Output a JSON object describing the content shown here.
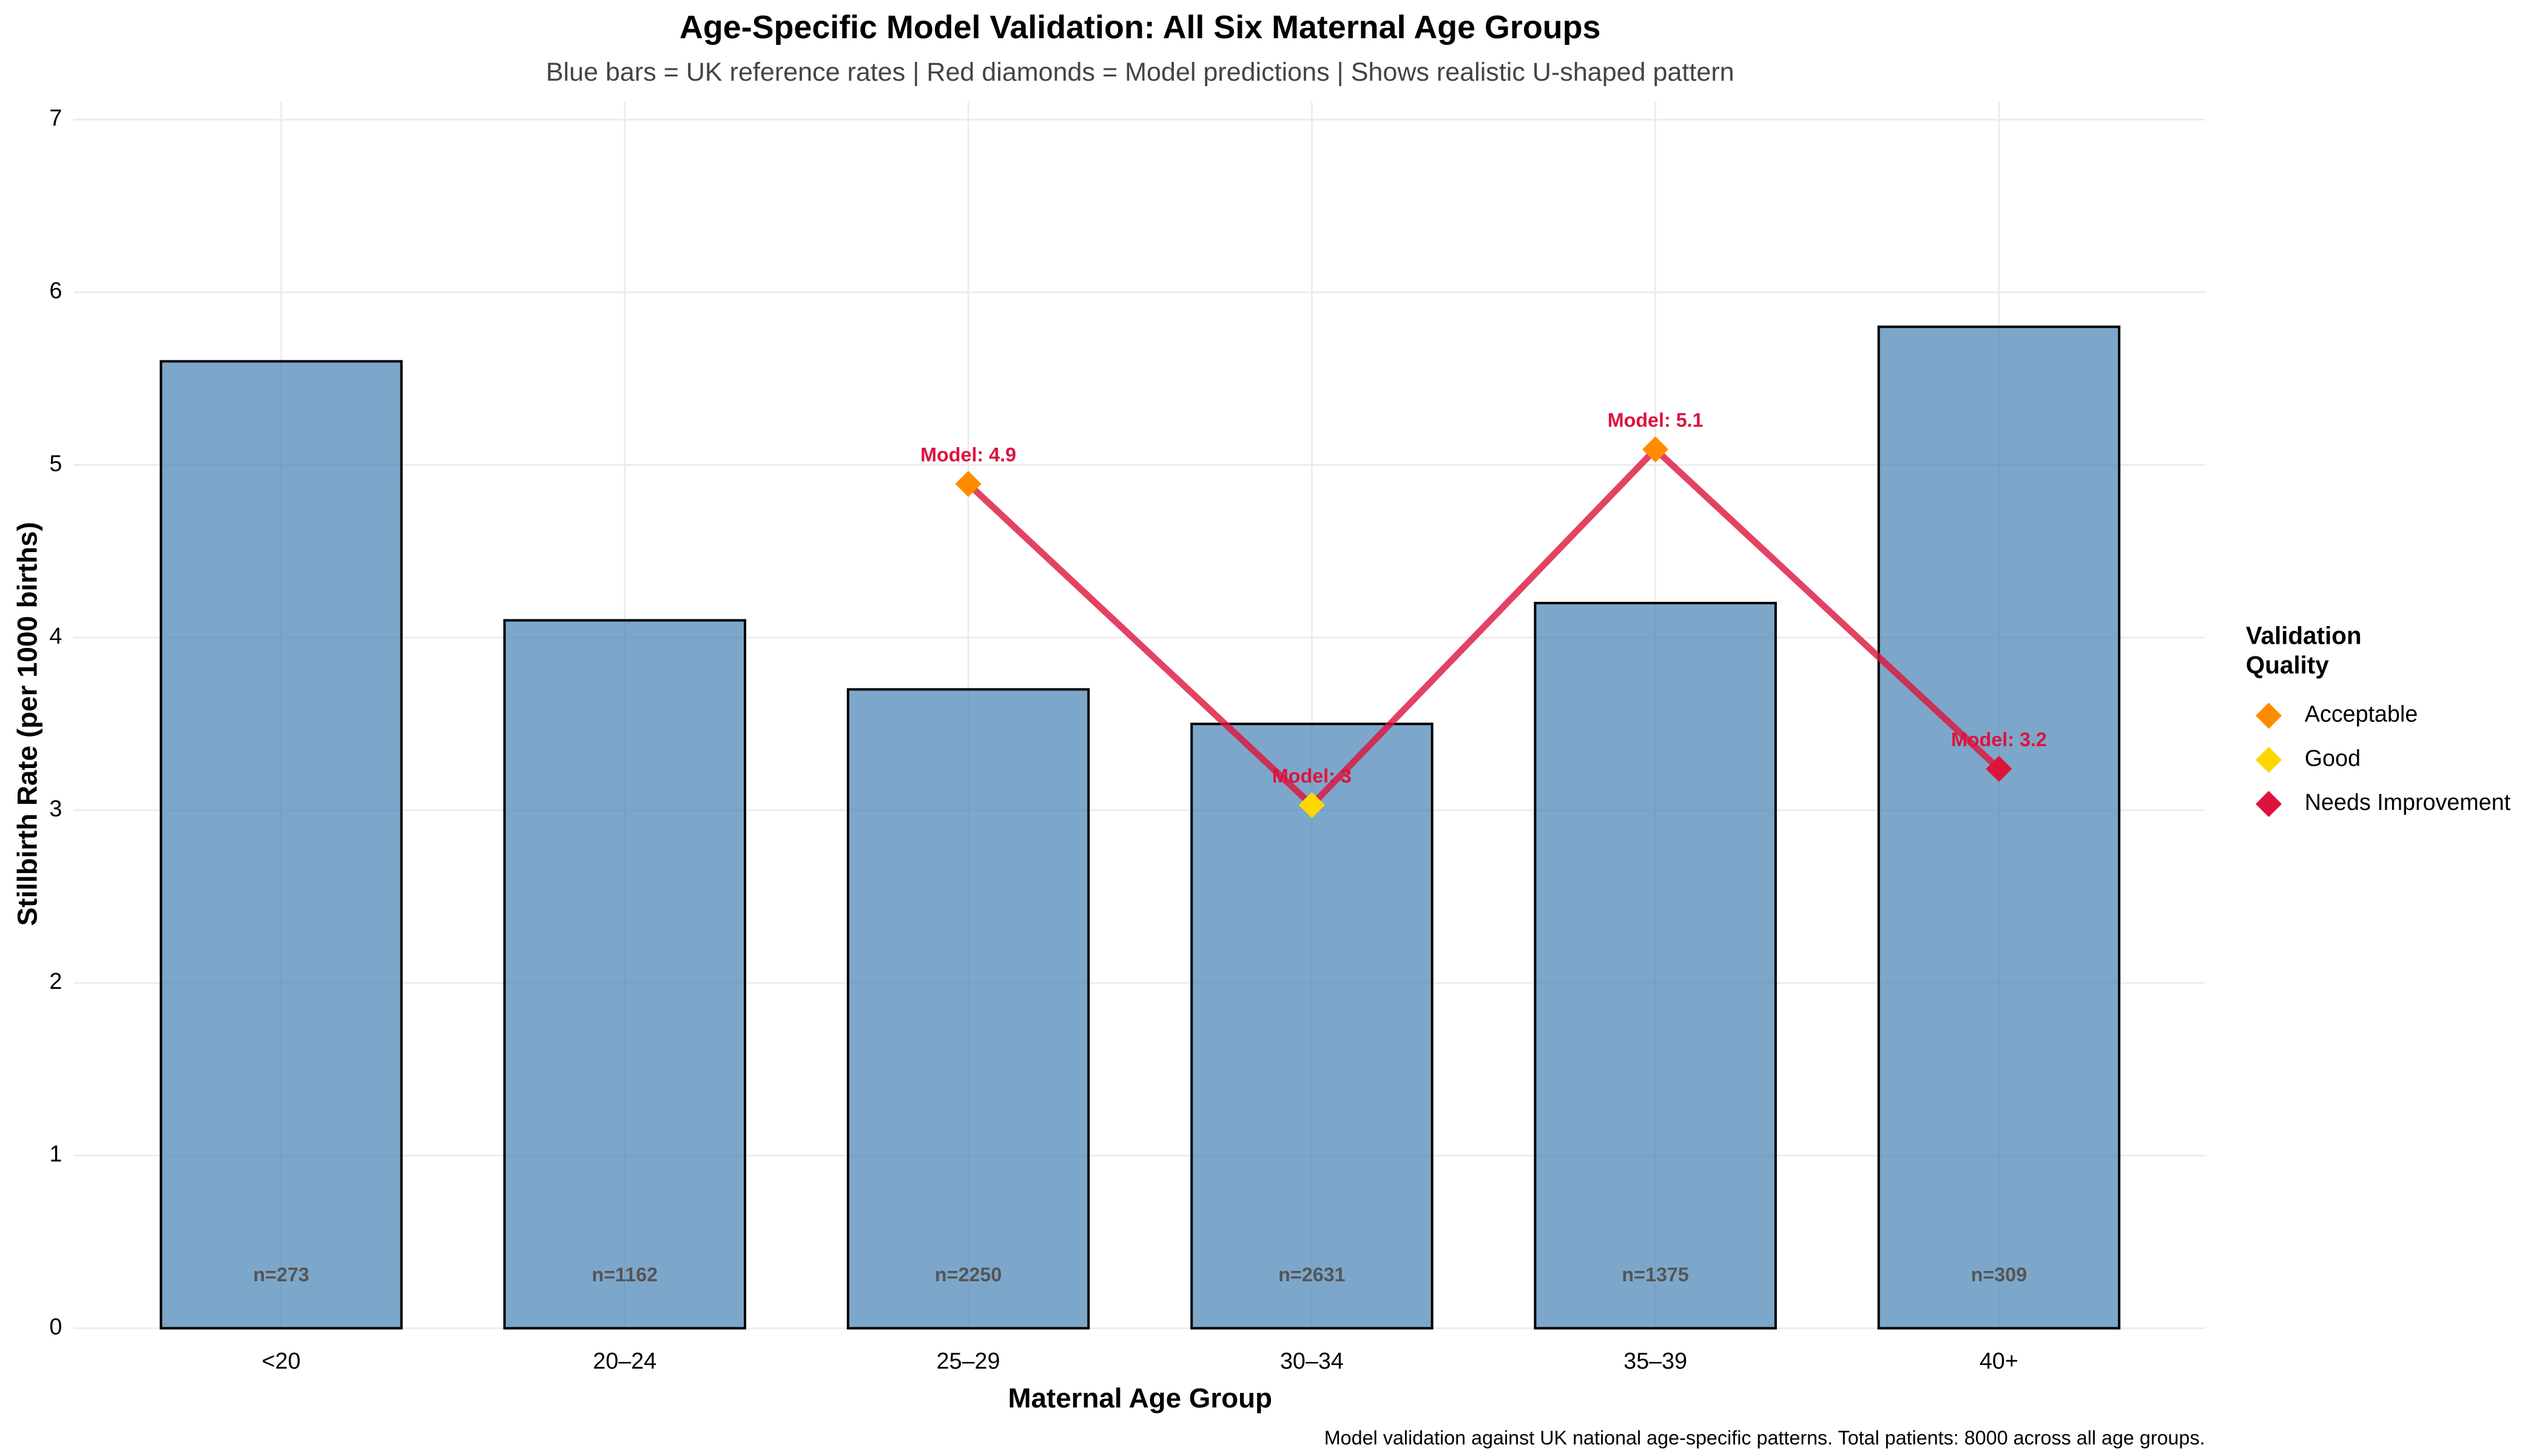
{
  "chart_data": {
    "type": "bar",
    "title": "Age-Specific Model Validation: All Six Maternal Age Groups",
    "subtitle": "Blue bars = UK reference rates | Red diamonds = Model predictions | Shows realistic U-shaped pattern",
    "x_label": "Maternal Age Group",
    "y_label": "Stillbirth Rate (per 1000 births)",
    "caption": "Model validation against UK national age-specific patterns. Total patients: 8000 across all age groups.",
    "categories": [
      "<20",
      "20–24",
      "25–29",
      "30–34",
      "35–39",
      "40+"
    ],
    "series": [
      {
        "name": "UK reference rates",
        "color": "#4682b4",
        "values": [
          5.6,
          4.1,
          3.7,
          3.5,
          4.2,
          5.8
        ],
        "bar_labels": [
          "n=273",
          "n=1162",
          "n=2250",
          "n=2631",
          "n=1375",
          "n=309"
        ]
      },
      {
        "name": "Model predictions",
        "color": "#dc143c",
        "values": [
          null,
          null,
          4.89,
          3.03,
          5.09,
          3.24
        ],
        "value_labels": [
          null,
          null,
          "Model: 4.9",
          "Model: 3",
          "Model: 5.1",
          "Model: 3.2"
        ],
        "marker_colors": [
          null,
          null,
          "#ff8c00",
          "#ffd700",
          "#ff8c00",
          "#dc143c"
        ]
      }
    ],
    "legend_title": [
      "Validation",
      "Quality"
    ],
    "legend": [
      {
        "name": "Acceptable",
        "color": "#ff8c00"
      },
      {
        "name": "Good",
        "color": "#ffd700"
      },
      {
        "name": "Needs Improvement",
        "color": "#dc143c"
      }
    ],
    "legend_position": "right",
    "ylim": [
      0,
      7
    ],
    "yticks": [
      0,
      1,
      2,
      3,
      4,
      5,
      6,
      7
    ],
    "grid": true
  }
}
